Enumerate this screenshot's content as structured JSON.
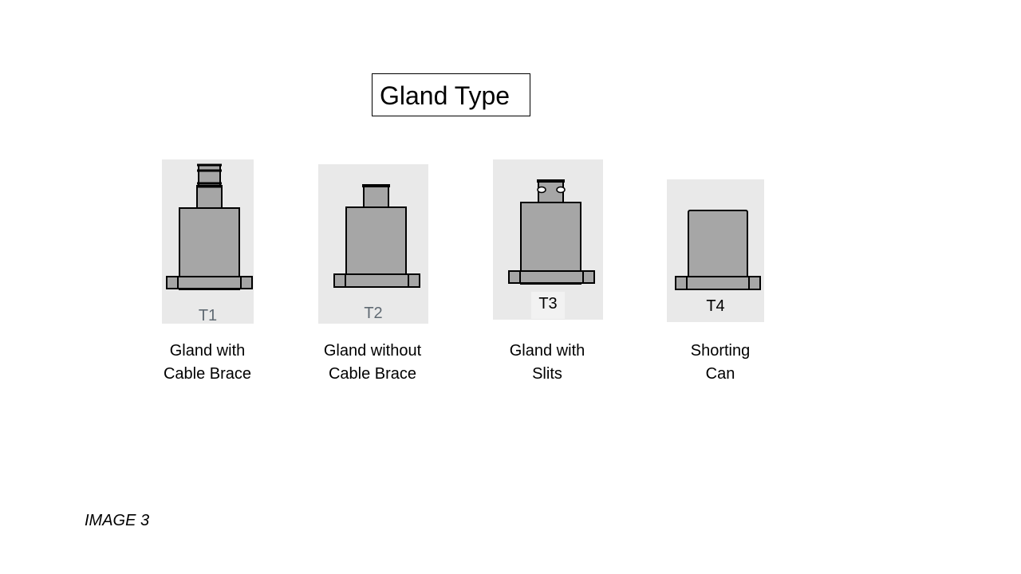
{
  "title": "Gland Type",
  "glands": [
    {
      "code": "T1",
      "caption_line1": "Gland with",
      "caption_line2": "Cable Brace",
      "icon": "gland-with-cable-brace-icon"
    },
    {
      "code": "T2",
      "caption_line1": "Gland without",
      "caption_line2": "Cable Brace",
      "icon": "gland-without-cable-brace-icon"
    },
    {
      "code": "T3",
      "caption_line1": "Gland with",
      "caption_line2": "Slits",
      "icon": "gland-with-slits-icon"
    },
    {
      "code": "T4",
      "caption_line1": "Shorting",
      "caption_line2": "Can",
      "icon": "shorting-can-icon"
    }
  ],
  "image_label": "IMAGE 3",
  "colors": {
    "panel": "#e9e9e9",
    "body": "#a6a6a6",
    "outline": "#000000",
    "muted_code": "#606a73"
  }
}
